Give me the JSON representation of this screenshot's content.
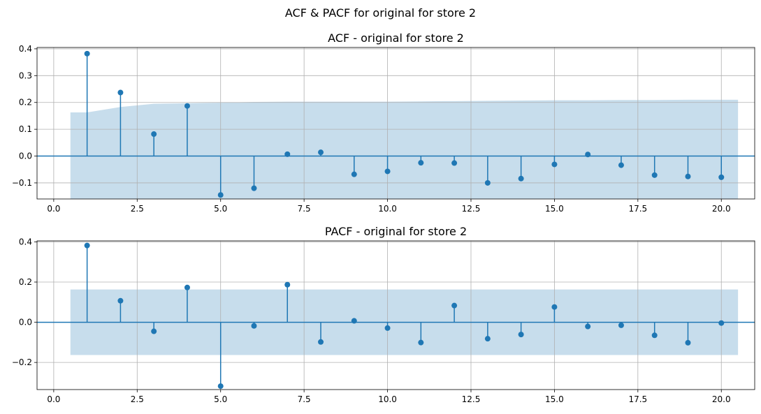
{
  "figure": {
    "suptitle": "ACF & PACF for original for store 2"
  },
  "colors": {
    "series": "#1f77b4",
    "band_opacity": 0.25,
    "grid": "#b0b0b0"
  },
  "chart_data": [
    {
      "type": "stem",
      "title": "ACF - original for store 2",
      "xlabel": "",
      "ylabel": "",
      "grid": true,
      "xlim": [
        -0.5,
        21.0
      ],
      "ylim": [
        -0.16,
        0.405
      ],
      "xticks": [
        0.0,
        2.5,
        5.0,
        7.5,
        10.0,
        12.5,
        15.0,
        17.5,
        20.0
      ],
      "xtick_labels": [
        "0.0",
        "2.5",
        "5.0",
        "7.5",
        "10.0",
        "12.5",
        "15.0",
        "17.5",
        "20.0"
      ],
      "yticks": [
        -0.1,
        0.0,
        0.1,
        0.2,
        0.3,
        0.4
      ],
      "ytick_labels": [
        "−0.1",
        "0.0",
        "0.1",
        "0.2",
        "0.3",
        "0.4"
      ],
      "lags": [
        1,
        2,
        3,
        4,
        5,
        6,
        7,
        8,
        9,
        10,
        11,
        12,
        13,
        14,
        15,
        16,
        17,
        18,
        19,
        20
      ],
      "values": [
        0.382,
        0.237,
        0.082,
        0.187,
        -0.145,
        -0.12,
        0.007,
        0.014,
        -0.068,
        -0.057,
        -0.025,
        -0.026,
        -0.1,
        -0.084,
        -0.031,
        0.006,
        -0.034,
        -0.071,
        -0.076,
        -0.079
      ],
      "conf_band": {
        "x": [
          0.5,
          1,
          2,
          3,
          4,
          5,
          6,
          7,
          8,
          9,
          10,
          11,
          12,
          13,
          14,
          15,
          16,
          17,
          18,
          19,
          20,
          20.5
        ],
        "half_width": [
          0.163,
          0.163,
          0.183,
          0.195,
          0.197,
          0.199,
          0.202,
          0.203,
          0.203,
          0.203,
          0.203,
          0.204,
          0.205,
          0.206,
          0.207,
          0.208,
          0.208,
          0.209,
          0.209,
          0.21,
          0.21,
          0.21
        ]
      }
    },
    {
      "type": "stem",
      "title": "PACF - original for store 2",
      "xlabel": "",
      "ylabel": "",
      "grid": true,
      "xlim": [
        -0.5,
        21.0
      ],
      "ylim": [
        -0.335,
        0.405
      ],
      "xticks": [
        0.0,
        2.5,
        5.0,
        7.5,
        10.0,
        12.5,
        15.0,
        17.5,
        20.0
      ],
      "xtick_labels": [
        "0.0",
        "2.5",
        "5.0",
        "7.5",
        "10.0",
        "12.5",
        "15.0",
        "17.5",
        "20.0"
      ],
      "yticks": [
        -0.2,
        0.0,
        0.2,
        0.4
      ],
      "ytick_labels": [
        "−0.2",
        "0.0",
        "0.2",
        "0.4"
      ],
      "lags": [
        1,
        2,
        3,
        4,
        5,
        6,
        7,
        8,
        9,
        10,
        11,
        12,
        13,
        14,
        15,
        16,
        17,
        18,
        19,
        20
      ],
      "values": [
        0.382,
        0.107,
        -0.045,
        0.173,
        -0.318,
        -0.018,
        0.187,
        -0.098,
        0.007,
        -0.029,
        -0.101,
        0.083,
        -0.082,
        -0.061,
        0.076,
        -0.021,
        -0.015,
        -0.065,
        -0.102,
        -0.004
      ],
      "conf_band": {
        "x": [
          0.5,
          20.5
        ],
        "half_width": [
          0.163,
          0.163
        ]
      }
    }
  ]
}
